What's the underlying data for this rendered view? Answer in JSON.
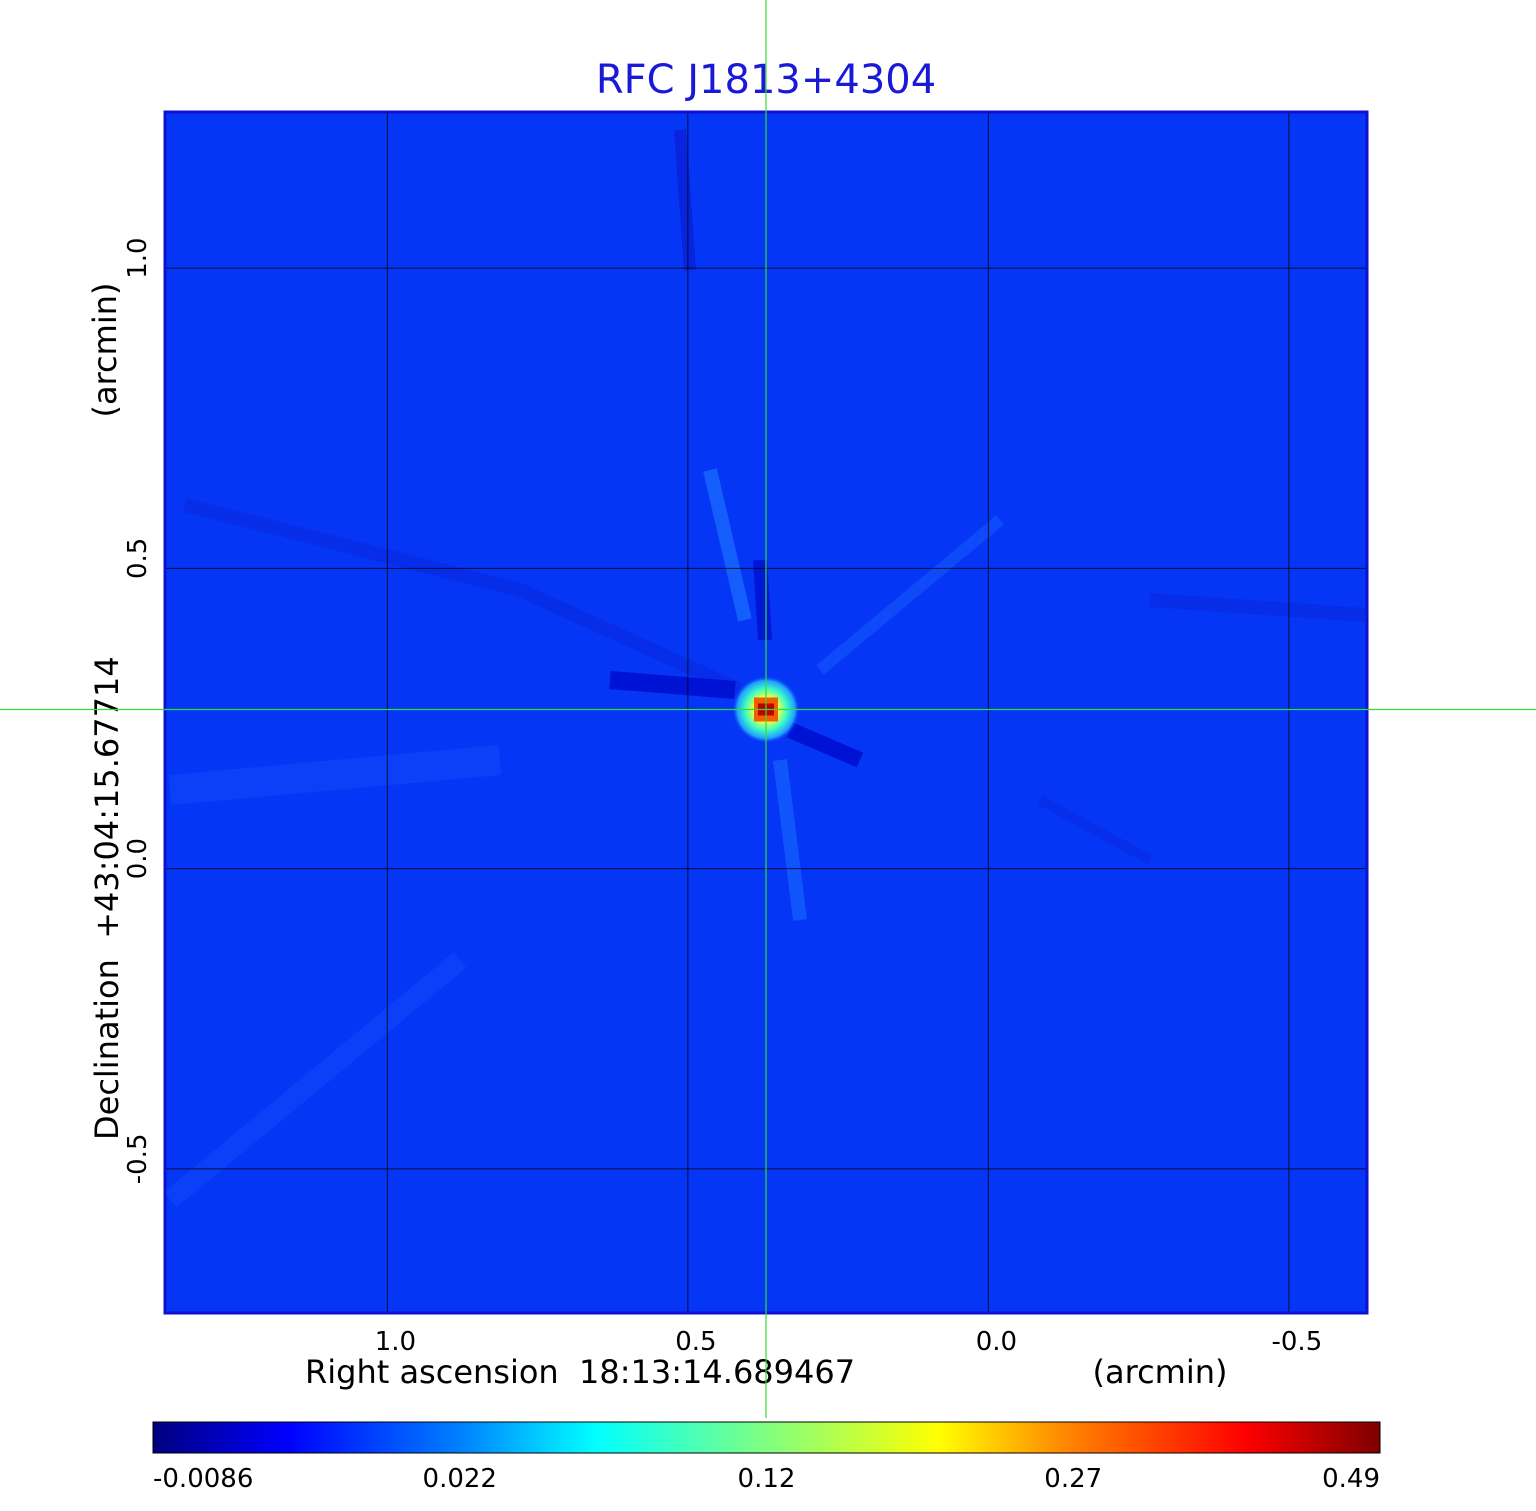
{
  "chart_data": {
    "type": "heatmap",
    "title": "RFC J1813+4304",
    "xlabel": "Right ascension  18:13:14.689467",
    "xunit": "(arcmin)",
    "ylabel": "Declination  +43:04:15.67714",
    "yunit": "(arcmin)",
    "xlim": [
      1.37,
      -0.63
    ],
    "ylim": [
      -0.74,
      1.26
    ],
    "x_ticks": [
      1.0,
      0.5,
      0.0,
      -0.5
    ],
    "x_tick_labels": [
      "1.0",
      "0.5",
      "0.0",
      "-0.5"
    ],
    "y_ticks": [
      1.0,
      0.5,
      0.0,
      -0.5
    ],
    "y_tick_labels": [
      "1.0",
      "0.5",
      "0.0",
      "-0.5"
    ],
    "grid": true,
    "crosshair": {
      "x": 0.37,
      "y": 0.265
    },
    "source": {
      "x": 0.37,
      "y": 0.265,
      "peak": 0.49
    },
    "colorbar": {
      "ticks": [
        -0.0086,
        0.022,
        0.12,
        0.27,
        0.49
      ],
      "tick_labels": [
        "-0.0086",
        "0.022",
        "0.12",
        "0.27",
        "0.49"
      ],
      "colormap": "jet"
    },
    "colors": {
      "title": "#1a1ad6",
      "background": "#0535f5",
      "crosshair": "#33dd33",
      "grid": "#000000"
    }
  }
}
